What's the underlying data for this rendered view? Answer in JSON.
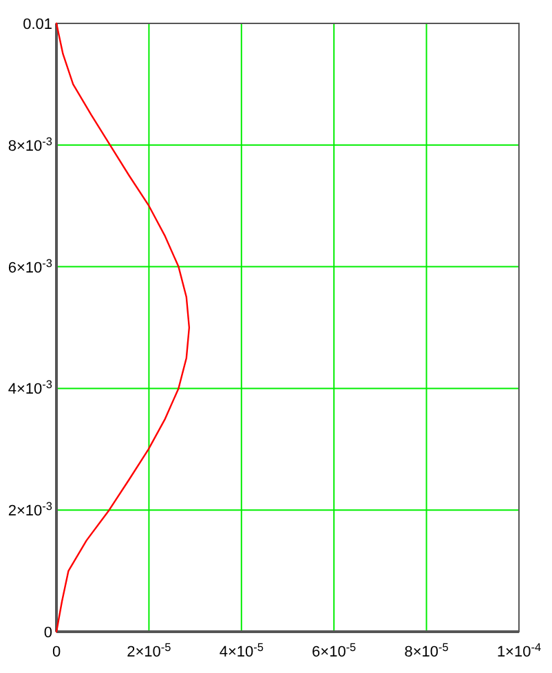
{
  "chart_data": {
    "type": "line",
    "grid": true,
    "marker": "none",
    "line_style": "solid",
    "xlim": [
      0,
      0.0001
    ],
    "ylim": [
      0,
      0.01
    ],
    "xticks": [
      0,
      {
        "value": 2e-05,
        "label": "2×10$^{-5}$"
      },
      {
        "value": 4e-05,
        "label": "4×10$^{-5}$"
      },
      {
        "value": 6e-05,
        "label": "6×10$^{-5}$"
      },
      {
        "value": 8e-05,
        "label": "8×10$^{-5}$"
      },
      {
        "value": 0.0001,
        "label": "1×10$^{-4}$"
      }
    ],
    "yticks": [
      0,
      {
        "value": 0.002,
        "label": "2×10$^{-3}$"
      },
      {
        "value": 0.004,
        "label": "4×10$^{-3}$"
      },
      {
        "value": 0.006,
        "label": "6×10$^{-3}$"
      },
      {
        "value": 0.008,
        "label": "8×10$^{-3}$"
      },
      0.01
    ],
    "series": [
      {
        "color": "#ff0000",
        "x": [
          0,
          1.2e-06,
          2.6e-06,
          6.5e-06,
          1.14e-05,
          1.57e-05,
          1.99e-05,
          2.35e-05,
          2.64e-05,
          2.81e-05,
          2.87e-05,
          2.81e-05,
          2.64e-05,
          2.35e-05,
          2e-05,
          1.57e-05,
          1.16e-05,
          7.5e-06,
          3.6e-06,
          1.4e-06,
          0
        ],
        "values": [
          0,
          0.0005,
          0.001,
          0.0015,
          0.002,
          0.0025,
          0.003,
          0.0035,
          0.004,
          0.0045,
          0.005,
          0.0055,
          0.006,
          0.0065,
          0.007,
          0.0075,
          0.008,
          0.0085,
          0.009,
          0.0095,
          0.01
        ]
      }
    ]
  }
}
